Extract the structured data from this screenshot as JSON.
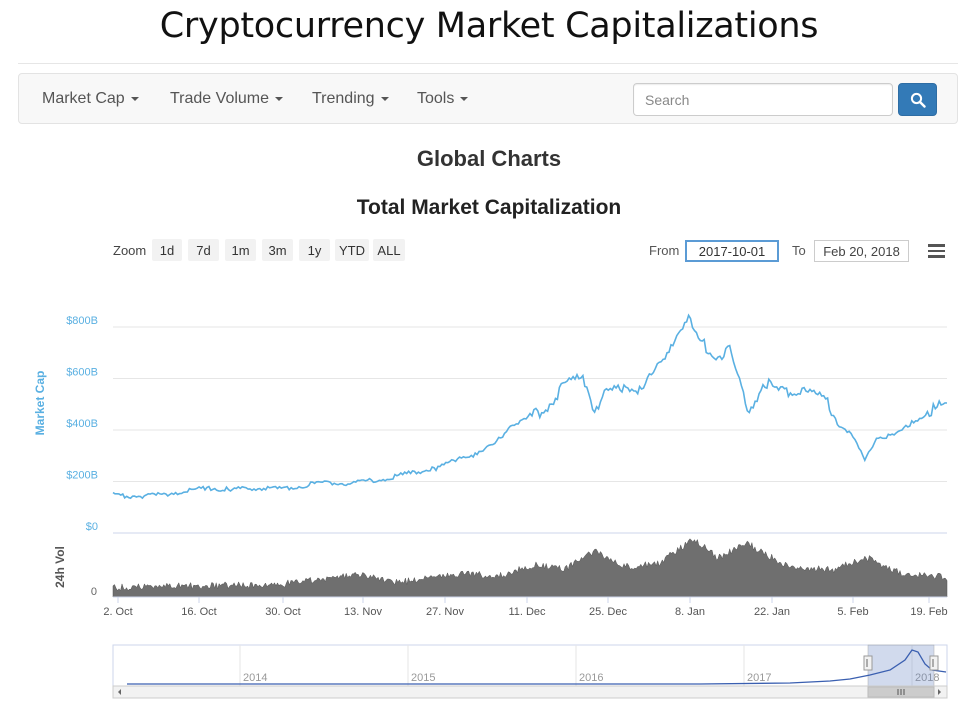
{
  "header": {
    "title": "Cryptocurrency Market Capitalizations"
  },
  "nav": {
    "items": [
      {
        "label": "Market Cap"
      },
      {
        "label": "Trade Volume"
      },
      {
        "label": "Trending"
      },
      {
        "label": "Tools"
      }
    ],
    "search_placeholder": "Search"
  },
  "page": {
    "section_title": "Global Charts"
  },
  "controls": {
    "zoom_label": "Zoom",
    "zoom_buttons": [
      "1d",
      "7d",
      "1m",
      "3m",
      "1y",
      "YTD",
      "ALL"
    ],
    "from_label": "From",
    "from_value": "2017-10-01",
    "to_label": "To",
    "to_value": "Feb 20, 2018"
  },
  "colors": {
    "accent": "#337ab7",
    "market_cap_line": "#5ab0e2",
    "volume_fill": "#6f6f6f",
    "navigator_line": "#3a5fb0"
  },
  "chart_data": {
    "type": "area",
    "title": "Total Market Capitalization",
    "x_ticks": [
      "2. Oct",
      "16. Oct",
      "30. Oct",
      "13. Nov",
      "27. Nov",
      "11. Dec",
      "25. Dec",
      "8. Jan",
      "22. Jan",
      "5. Feb",
      "19. Feb"
    ],
    "x_range": [
      "2017-10-01",
      "2018-02-20"
    ],
    "grid": true,
    "market_cap": {
      "ylabel": "Market Cap",
      "y_ticks": [
        "$0",
        "$200B",
        "$400B",
        "$600B",
        "$800B"
      ],
      "ylim": [
        0,
        800
      ],
      "unit": "billion USD",
      "points": [
        [
          "2017-10-01",
          148
        ],
        [
          "2017-10-05",
          143
        ],
        [
          "2017-10-09",
          148
        ],
        [
          "2017-10-13",
          162
        ],
        [
          "2017-10-17",
          175
        ],
        [
          "2017-10-21",
          168
        ],
        [
          "2017-10-25",
          174
        ],
        [
          "2017-10-29",
          172
        ],
        [
          "2017-11-02",
          182
        ],
        [
          "2017-11-06",
          197
        ],
        [
          "2017-11-10",
          192
        ],
        [
          "2017-11-13",
          200
        ],
        [
          "2017-11-17",
          213
        ],
        [
          "2017-11-21",
          236
        ],
        [
          "2017-11-25",
          250
        ],
        [
          "2017-11-29",
          295
        ],
        [
          "2017-12-02",
          305
        ],
        [
          "2017-12-05",
          345
        ],
        [
          "2017-12-08",
          425
        ],
        [
          "2017-12-11",
          448
        ],
        [
          "2017-12-14",
          490
        ],
        [
          "2017-12-17",
          580
        ],
        [
          "2017-12-20",
          610
        ],
        [
          "2017-12-22",
          480
        ],
        [
          "2017-12-24",
          545
        ],
        [
          "2017-12-27",
          570
        ],
        [
          "2017-12-30",
          560
        ],
        [
          "2018-01-02",
          645
        ],
        [
          "2018-01-05",
          775
        ],
        [
          "2018-01-07",
          825
        ],
        [
          "2018-01-09",
          740
        ],
        [
          "2018-01-12",
          690
        ],
        [
          "2018-01-14",
          705
        ],
        [
          "2018-01-16",
          560
        ],
        [
          "2018-01-17",
          470
        ],
        [
          "2018-01-20",
          585
        ],
        [
          "2018-01-23",
          545
        ],
        [
          "2018-01-27",
          560
        ],
        [
          "2018-01-30",
          525
        ],
        [
          "2018-02-02",
          420
        ],
        [
          "2018-02-04",
          370
        ],
        [
          "2018-02-06",
          280
        ],
        [
          "2018-02-08",
          375
        ],
        [
          "2018-02-11",
          375
        ],
        [
          "2018-02-14",
          430
        ],
        [
          "2018-02-17",
          470
        ],
        [
          "2018-02-20",
          505
        ]
      ]
    },
    "volume": {
      "ylabel": "24h Vol",
      "y_ticks": [
        "0"
      ],
      "relative_points": [
        [
          "2017-10-01",
          0.1
        ],
        [
          "2017-10-15",
          0.13
        ],
        [
          "2017-10-29",
          0.15
        ],
        [
          "2017-11-12",
          0.32
        ],
        [
          "2017-11-18",
          0.18
        ],
        [
          "2017-11-29",
          0.33
        ],
        [
          "2017-12-06",
          0.3
        ],
        [
          "2017-12-12",
          0.5
        ],
        [
          "2017-12-17",
          0.42
        ],
        [
          "2017-12-22",
          0.72
        ],
        [
          "2017-12-27",
          0.45
        ],
        [
          "2018-01-02",
          0.52
        ],
        [
          "2018-01-08",
          0.92
        ],
        [
          "2018-01-12",
          0.6
        ],
        [
          "2018-01-17",
          0.85
        ],
        [
          "2018-01-24",
          0.45
        ],
        [
          "2018-02-01",
          0.4
        ],
        [
          "2018-02-06",
          0.62
        ],
        [
          "2018-02-12",
          0.35
        ],
        [
          "2018-02-20",
          0.28
        ]
      ]
    },
    "navigator": {
      "x_ticks": [
        "2014",
        "2015",
        "2016",
        "2017",
        "2018"
      ]
    }
  }
}
